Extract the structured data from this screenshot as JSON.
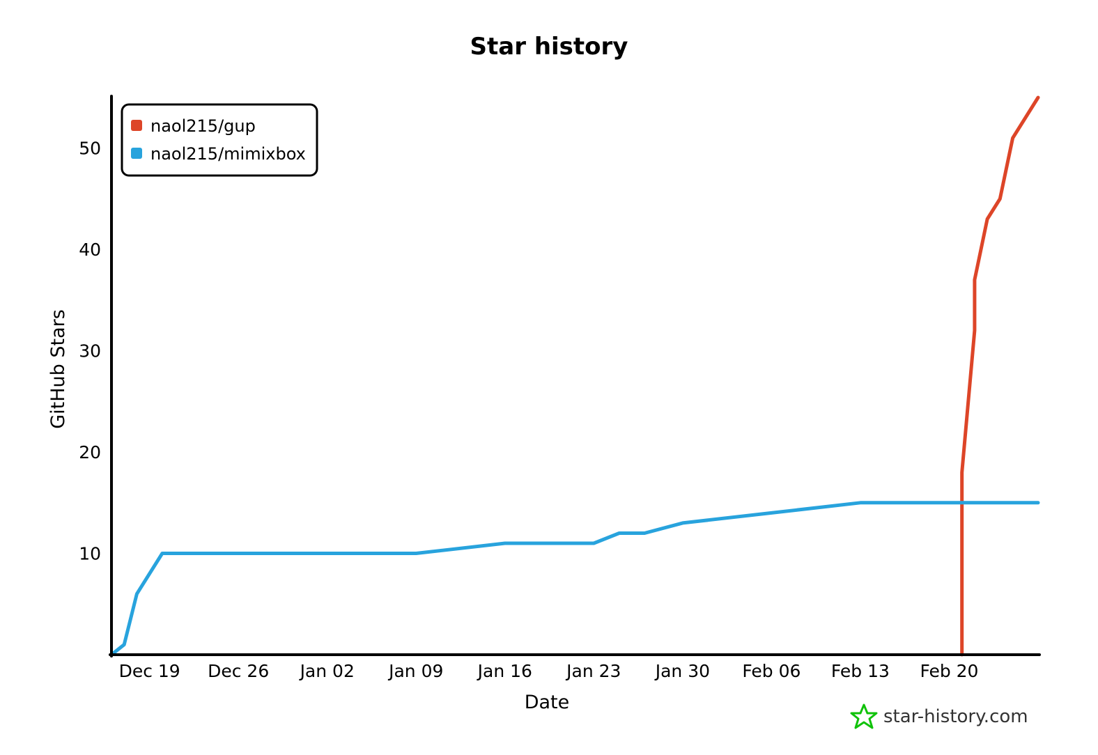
{
  "chart_data": {
    "type": "line",
    "title": "Star history",
    "xlabel": "Date",
    "ylabel": "GitHub Stars",
    "x_ticks": [
      "Dec 19",
      "Dec 26",
      "Jan 02",
      "Jan 09",
      "Jan 16",
      "Jan 23",
      "Jan 30",
      "Feb 06",
      "Feb 13",
      "Feb 20"
    ],
    "y_ticks": [
      10,
      20,
      30,
      40,
      50
    ],
    "ylim": [
      0,
      55
    ],
    "xlim": [
      "2021-12-16",
      "2022-02-27"
    ],
    "grid": false,
    "legend_position": "top-left",
    "series": [
      {
        "name": "naol215/gup",
        "color": "#dd4528",
        "points": [
          {
            "date": "2022-02-21",
            "stars": 0
          },
          {
            "date": "2022-02-21",
            "stars": 18
          },
          {
            "date": "2022-02-22",
            "stars": 32
          },
          {
            "date": "2022-02-22",
            "stars": 37
          },
          {
            "date": "2022-02-23",
            "stars": 43
          },
          {
            "date": "2022-02-24",
            "stars": 45
          },
          {
            "date": "2022-02-25",
            "stars": 51
          },
          {
            "date": "2022-02-27",
            "stars": 55
          }
        ]
      },
      {
        "name": "naol215/mimixbox",
        "color": "#28a3dd",
        "points": [
          {
            "date": "2021-12-16",
            "stars": 0
          },
          {
            "date": "2021-12-17",
            "stars": 1
          },
          {
            "date": "2021-12-18",
            "stars": 6
          },
          {
            "date": "2021-12-20",
            "stars": 10
          },
          {
            "date": "2021-12-24",
            "stars": 10
          },
          {
            "date": "2021-12-26",
            "stars": 10
          },
          {
            "date": "2022-01-02",
            "stars": 10
          },
          {
            "date": "2022-01-09",
            "stars": 10
          },
          {
            "date": "2022-01-16",
            "stars": 11
          },
          {
            "date": "2022-01-23",
            "stars": 11
          },
          {
            "date": "2022-01-25",
            "stars": 12
          },
          {
            "date": "2022-01-27",
            "stars": 12
          },
          {
            "date": "2022-01-30",
            "stars": 13
          },
          {
            "date": "2022-02-06",
            "stars": 14
          },
          {
            "date": "2022-02-13",
            "stars": 15
          },
          {
            "date": "2022-02-16",
            "stars": 15
          },
          {
            "date": "2022-02-20",
            "stars": 15
          },
          {
            "date": "2022-02-27",
            "stars": 15
          }
        ]
      }
    ]
  },
  "watermark": {
    "text": "star-history.com",
    "icon": "star-history-logo-icon",
    "icon_color": "#10c20a"
  }
}
